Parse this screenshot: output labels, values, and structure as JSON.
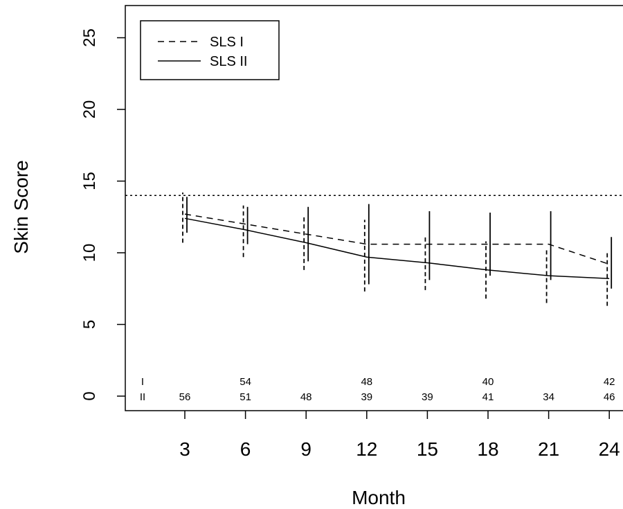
{
  "chart_data": {
    "type": "line",
    "xlabel": "Month",
    "ylabel": "Skin Score",
    "xlim": [
      0,
      24
    ],
    "ylim": [
      0,
      26
    ],
    "x_ticks": [
      3,
      6,
      9,
      12,
      15,
      18,
      21,
      24
    ],
    "y_ticks": [
      0,
      5,
      10,
      15,
      20,
      25
    ],
    "grid": false,
    "legend_position": "top-left",
    "reference_line": {
      "y": 14,
      "style": "dotted"
    },
    "x": [
      3,
      6,
      9,
      12,
      15,
      18,
      21,
      24
    ],
    "series": [
      {
        "name": "SLS I",
        "style": "dashed",
        "values": [
          12.7,
          12.0,
          11.3,
          10.6,
          10.6,
          10.6,
          10.6,
          9.2
        ],
        "error_low": [
          10.7,
          9.7,
          8.8,
          7.3,
          7.4,
          6.8,
          6.5,
          6.3
        ],
        "error_high": [
          14.2,
          13.3,
          12.6,
          12.3,
          11.2,
          10.8,
          10.3,
          10.1
        ]
      },
      {
        "name": "SLS II",
        "style": "solid",
        "values": [
          12.4,
          11.6,
          10.7,
          9.7,
          9.3,
          8.8,
          8.4,
          8.2
        ],
        "error_low": [
          11.4,
          10.6,
          9.4,
          7.8,
          8.1,
          8.4,
          8.1,
          7.5
        ],
        "error_high": [
          13.9,
          13.2,
          13.2,
          13.4,
          12.9,
          12.8,
          12.9,
          11.1
        ]
      }
    ],
    "counts": {
      "label_I": "I",
      "label_II": "II",
      "row_I": [
        {
          "month": 6,
          "value": "54"
        },
        {
          "month": 12,
          "value": "48"
        },
        {
          "month": 18,
          "value": "40"
        },
        {
          "month": 24,
          "value": "42"
        }
      ],
      "row_II": [
        {
          "month": 3,
          "value": "56"
        },
        {
          "month": 6,
          "value": "51"
        },
        {
          "month": 9,
          "value": "48"
        },
        {
          "month": 12,
          "value": "39"
        },
        {
          "month": 15,
          "value": "39"
        },
        {
          "month": 18,
          "value": "41"
        },
        {
          "month": 21,
          "value": "34"
        },
        {
          "month": 24,
          "value": "46"
        }
      ]
    }
  }
}
